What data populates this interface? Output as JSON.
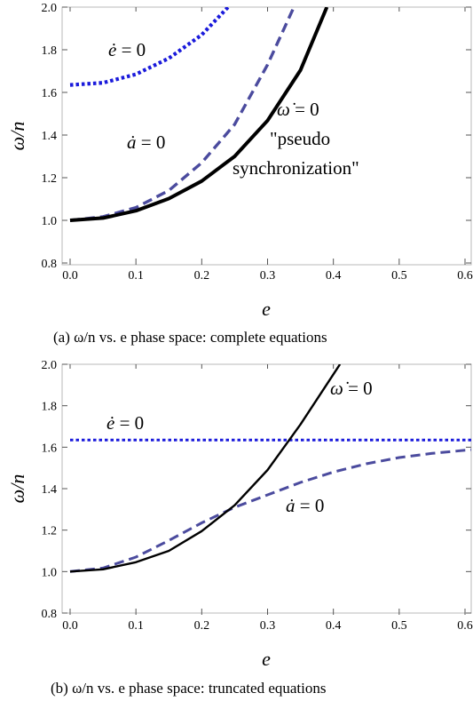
{
  "chart_data": [
    {
      "type": "line",
      "caption": "(a) ω/n vs. e phase space: complete equations",
      "xlabel": "e",
      "ylabel": "ω/n",
      "xlim": [
        0,
        0.62
      ],
      "ylim": [
        0.8,
        2.0
      ],
      "xticks": [
        "0.0",
        "0.1",
        "0.2",
        "0.3",
        "0.4",
        "0.5",
        "0.6"
      ],
      "yticks": [
        "0.8",
        "1.0",
        "1.2",
        "1.4",
        "1.6",
        "1.8",
        "2.0"
      ],
      "series": [
        {
          "name": "ė = 0",
          "style": "dotted",
          "color": "#1a1adb",
          "x": [
            0.0,
            0.05,
            0.1,
            0.15,
            0.2,
            0.24
          ],
          "y": [
            1.635,
            1.645,
            1.685,
            1.76,
            1.87,
            2.0
          ]
        },
        {
          "name": "ȧ = 0",
          "style": "dashed",
          "color": "#4b4b9e",
          "x": [
            0.0,
            0.05,
            0.1,
            0.15,
            0.2,
            0.25,
            0.3,
            0.34
          ],
          "y": [
            1.0,
            1.017,
            1.06,
            1.14,
            1.27,
            1.45,
            1.73,
            2.0
          ]
        },
        {
          "name": "ω̇ = 0",
          "style": "solid",
          "color": "#000000",
          "x": [
            0.0,
            0.05,
            0.1,
            0.15,
            0.2,
            0.25,
            0.3,
            0.35,
            0.39
          ],
          "y": [
            1.0,
            1.011,
            1.045,
            1.102,
            1.184,
            1.3,
            1.468,
            1.704,
            2.0
          ]
        }
      ],
      "annotations": [
        {
          "text": "ė = 0"
        },
        {
          "text": "ȧ = 0"
        },
        {
          "text": "ω̇ = 0"
        },
        {
          "text": "\"pseudo"
        },
        {
          "text": "synchronization\""
        }
      ]
    },
    {
      "type": "line",
      "caption": "(b) ω/n vs. e phase space: truncated equations",
      "xlabel": "e",
      "ylabel": "ω/n",
      "xlim": [
        0,
        0.62
      ],
      "ylim": [
        0.8,
        2.0
      ],
      "xticks": [
        "0.0",
        "0.1",
        "0.2",
        "0.3",
        "0.4",
        "0.5",
        "0.6"
      ],
      "yticks": [
        "0.8",
        "1.0",
        "1.2",
        "1.4",
        "1.6",
        "1.8",
        "2.0"
      ],
      "series": [
        {
          "name": "ė = 0",
          "style": "dotted",
          "color": "#1a1adb",
          "x": [
            0.0,
            0.62
          ],
          "y": [
            1.635,
            1.635
          ]
        },
        {
          "name": "ȧ = 0",
          "style": "dashed",
          "color": "#4b4b9e",
          "x": [
            0.0,
            0.05,
            0.1,
            0.15,
            0.2,
            0.25,
            0.3,
            0.35,
            0.4,
            0.45,
            0.5,
            0.55,
            0.6,
            0.62
          ],
          "y": [
            1.0,
            1.017,
            1.07,
            1.15,
            1.235,
            1.31,
            1.37,
            1.43,
            1.48,
            1.52,
            1.55,
            1.57,
            1.585,
            1.59
          ]
        },
        {
          "name": "ω̇ = 0",
          "style": "solid",
          "color": "#000000",
          "x": [
            0.0,
            0.05,
            0.1,
            0.15,
            0.2,
            0.25,
            0.3,
            0.35,
            0.41
          ],
          "y": [
            1.0,
            1.011,
            1.045,
            1.1,
            1.195,
            1.32,
            1.49,
            1.71,
            2.0
          ]
        }
      ],
      "annotations": [
        {
          "text": "ė = 0"
        },
        {
          "text": "ȧ = 0"
        },
        {
          "text": "ω̇ = 0"
        }
      ]
    }
  ]
}
